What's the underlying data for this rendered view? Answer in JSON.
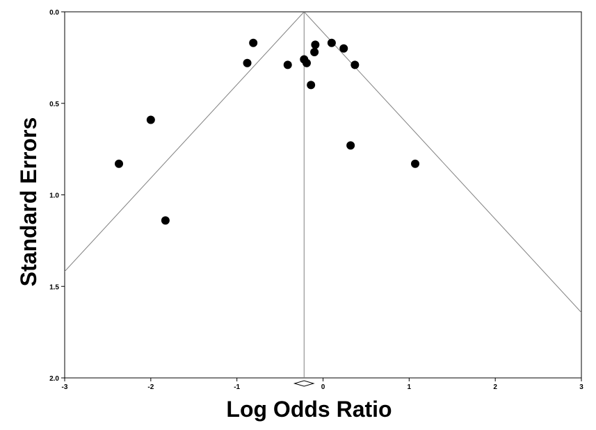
{
  "chart_data": {
    "type": "scatter",
    "xlabel": "Log Odds Ratio",
    "ylabel": "Standard Errors",
    "xlim": [
      -3,
      3
    ],
    "ylim": [
      0,
      2
    ],
    "y_reversed": true,
    "x_ticks": [
      "-3",
      "-2",
      "-1",
      "0",
      "1",
      "2",
      "3"
    ],
    "y_ticks": [
      "0.0",
      "0.5",
      "1.0",
      "1.5",
      "2.0"
    ],
    "grid": false,
    "legend": "none",
    "funnel": {
      "center_x": -0.22,
      "z": 1.96,
      "line_color": "#808080"
    },
    "summary_diamond": {
      "center_x": -0.22,
      "lower": -0.33,
      "upper": -0.11
    },
    "points": [
      {
        "x": -2.37,
        "y": 0.83
      },
      {
        "x": -2.0,
        "y": 0.59
      },
      {
        "x": -1.83,
        "y": 1.14
      },
      {
        "x": -0.88,
        "y": 0.28
      },
      {
        "x": -0.81,
        "y": 0.17
      },
      {
        "x": -0.41,
        "y": 0.29
      },
      {
        "x": -0.22,
        "y": 0.26
      },
      {
        "x": -0.19,
        "y": 0.28
      },
      {
        "x": -0.14,
        "y": 0.4
      },
      {
        "x": -0.1,
        "y": 0.22
      },
      {
        "x": -0.09,
        "y": 0.18
      },
      {
        "x": 0.1,
        "y": 0.17
      },
      {
        "x": 0.24,
        "y": 0.2
      },
      {
        "x": 0.37,
        "y": 0.29
      },
      {
        "x": 0.32,
        "y": 0.73
      },
      {
        "x": 1.07,
        "y": 0.83
      }
    ],
    "point_color": "#000000"
  }
}
